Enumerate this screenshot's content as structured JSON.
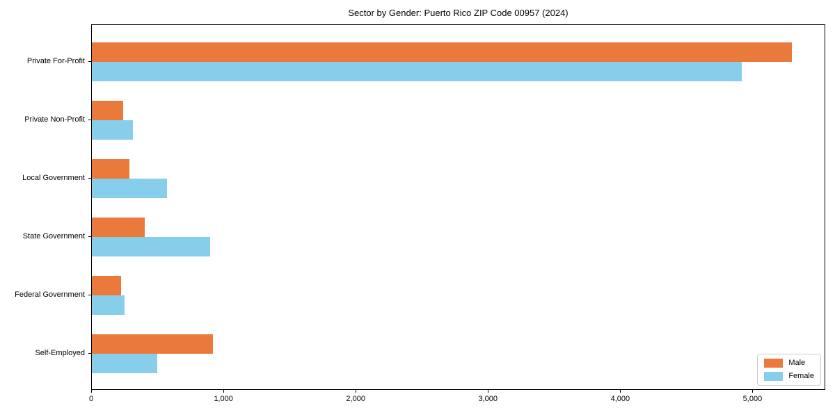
{
  "title": "Sector by Gender: Puerto Rico ZIP Code 00957 (2024)",
  "colors": {
    "male": "#E97A3C",
    "female": "#87CEEB",
    "axis": "#000000",
    "legend_border": "#CCCCCC"
  },
  "chart_data": {
    "type": "bar",
    "orientation": "horizontal",
    "title": "Sector by Gender: Puerto Rico ZIP Code 00957 (2024)",
    "categories": [
      "Private For-Profit",
      "Private Non-Profit",
      "Local Government",
      "State Government",
      "Federal Government",
      "Self-Employed"
    ],
    "series": [
      {
        "name": "Male",
        "color": "#E97A3C",
        "values": [
          5290,
          237,
          284,
          400,
          221,
          916
        ]
      },
      {
        "name": "Female",
        "color": "#87CEEB",
        "values": [
          4911,
          311,
          568,
          895,
          247,
          495
        ]
      }
    ],
    "xlabel": "",
    "ylabel": "",
    "xlim": [
      0,
      5550
    ],
    "xticks": [
      0,
      1000,
      2000,
      3000,
      4000,
      5000
    ],
    "xtick_labels": [
      "0",
      "1,000",
      "2,000",
      "3,000",
      "4,000",
      "5,000"
    ],
    "grid": false,
    "legend_position": "lower right"
  }
}
